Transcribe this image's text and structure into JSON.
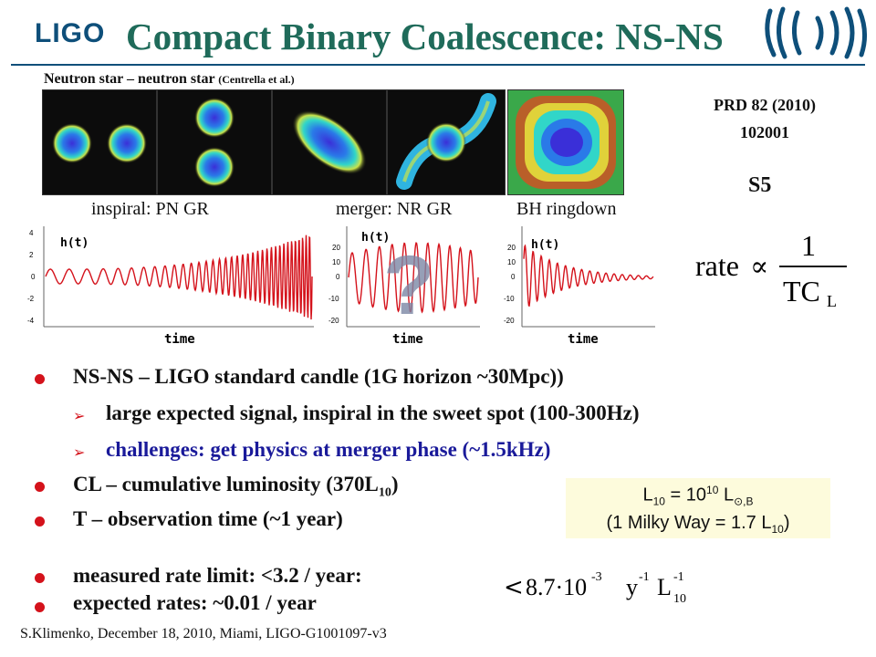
{
  "slide": {
    "title": "Compact Binary Coalescence: NS-NS",
    "logo_text": "LIGO",
    "sim_header": "Neutron star – neutron star",
    "sim_header_ref": "(Centrella et al.)",
    "reference_line1": "PRD 82 (2010)",
    "reference_line2": "102001",
    "run_label": "S5",
    "phases": {
      "inspiral": "inspiral: PN GR",
      "merger": "merger: NR GR",
      "ringdown": "BH ringdown"
    },
    "waveform_label": "h(t)",
    "waveform_xlabel": "time",
    "merger_mark": "?",
    "inspiral_ticks": [
      "4",
      "2",
      "0",
      "-2",
      "-4"
    ],
    "merger_ticks": [
      "20",
      "10",
      "0",
      "-10",
      "-20"
    ],
    "ringdown_ticks": [
      "20",
      "10",
      "0",
      "-10",
      "-20"
    ],
    "rate_formula": {
      "lhs": "rate",
      "prop": "∝",
      "numerator": "1",
      "denominator": "TC",
      "subscript": "L"
    },
    "bullets": [
      {
        "text": "NS-NS – LIGO standard candle (1G horizon ~30Mpc))"
      },
      {
        "text": "large expected signal, inspiral in the sweet spot (100-300Hz)"
      },
      {
        "text": "challenges: get physics at merger phase (~1.5kHz)"
      },
      {
        "text": "CL – cumulative luminosity (370L",
        "sub": "10",
        "tail": ")"
      },
      {
        "text": "T – observation time (~1 year)"
      },
      {
        "text": "measured rate limit:  <3.2 / year:"
      },
      {
        "text": "expected rates: ~0.01 / year"
      }
    ],
    "l10_box": {
      "r1_a": "L",
      "r1_sub": "10",
      "r1_b": " = 10",
      "r1_sup": "10",
      "r1_c": " L",
      "r1_sub2": "⊙,B",
      "r2_a": "(1 Milky Way = 1.7 L",
      "r2_sub": "10",
      "r2_b": ")"
    },
    "limit_formula": {
      "lt": "<",
      "value": "8.7·10",
      "exp": "-3",
      "units_y": "y",
      "units_exp1": "-1",
      "units_L": "L",
      "units_sub": "10",
      "units_exp2": "-1"
    },
    "footer": "S.Klimenko, December 18, 2010, Miami, LIGO-G1001097-v3",
    "colors": {
      "title": "#1f6b5a",
      "bullet": "#d4121b",
      "blue_text": "#1a1a9a",
      "wave": "#d4121b",
      "box_bg": "#fdfbdc"
    }
  }
}
